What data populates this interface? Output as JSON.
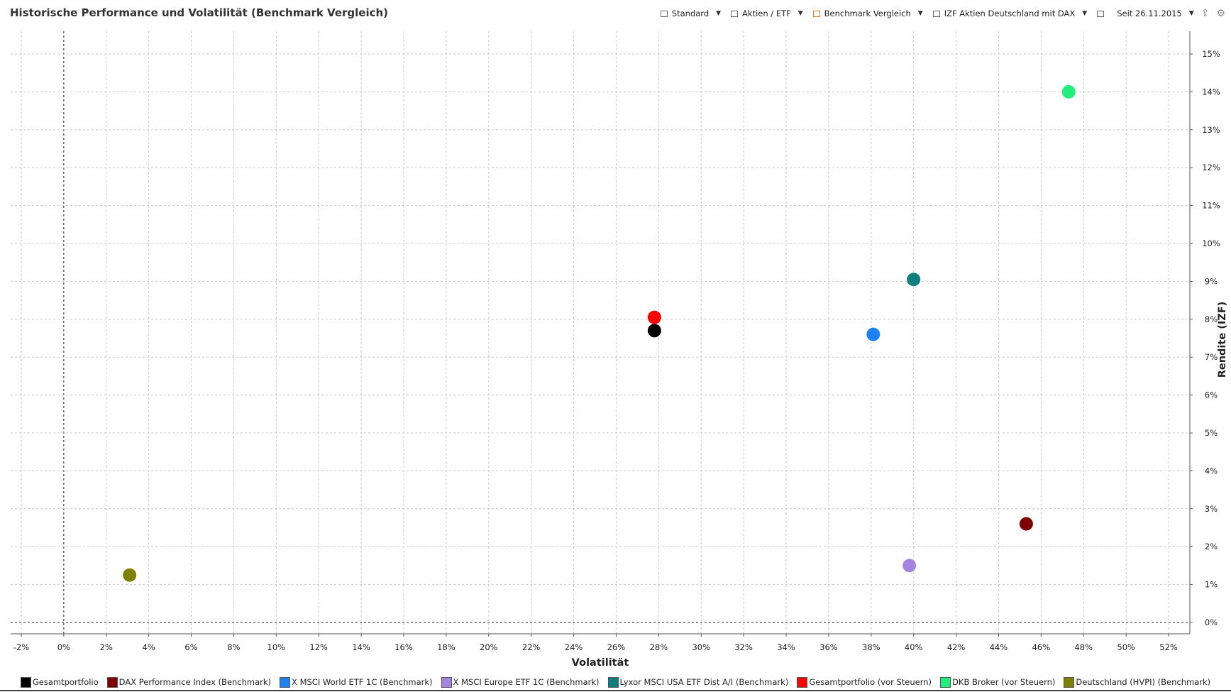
{
  "header": {
    "title": "Historische Performance und Volatilität (Benchmark Vergleich)",
    "toolbar": {
      "standard": "Standard",
      "aktien_etf": "Aktien / ETF",
      "benchmark": "Benchmark Vergleich",
      "izf": "IZF Aktien Deutschland mit DAX",
      "since": "Seit 26.11.2015",
      "upload_icon": "upload-icon",
      "gear_icon": "gear-icon"
    }
  },
  "chart_data": {
    "type": "scatter",
    "title": "Historische Performance und Volatilität (Benchmark Vergleich)",
    "xlabel": "Volatilität",
    "ylabel": "Rendite (IZF)",
    "xlim": [
      -2.5,
      53
    ],
    "ylim": [
      -0.3,
      15.6
    ],
    "x_ticks": [
      -2,
      0,
      2,
      4,
      6,
      8,
      10,
      12,
      14,
      16,
      18,
      20,
      22,
      24,
      26,
      28,
      30,
      32,
      34,
      36,
      38,
      40,
      42,
      44,
      46,
      48,
      50,
      52
    ],
    "y_ticks": [
      0,
      1,
      2,
      3,
      4,
      5,
      6,
      7,
      8,
      9,
      10,
      11,
      12,
      13,
      14,
      15
    ],
    "tick_format": "percent",
    "grid": true,
    "legend_position": "bottom",
    "series": [
      {
        "name": "Gesamtportfolio",
        "color": "#000000",
        "x": 27.8,
        "y": 7.7
      },
      {
        "name": "DAX Performance Index (Benchmark)",
        "color": "#800000",
        "x": 45.3,
        "y": 2.6
      },
      {
        "name": "X MSCI World ETF 1C (Benchmark)",
        "color": "#1a82f5",
        "x": 38.1,
        "y": 7.6
      },
      {
        "name": "X MSCI Europe ETF 1C (Benchmark)",
        "color": "#a583e0",
        "x": 39.8,
        "y": 1.5
      },
      {
        "name": "Lyxor MSCI USA ETF Dist A/I (Benchmark)",
        "color": "#0e7f7f",
        "x": 40.0,
        "y": 9.05
      },
      {
        "name": "Gesamtportfolio (vor Steuern)",
        "color": "#ff0000",
        "x": 27.8,
        "y": 8.05
      },
      {
        "name": "DKB Broker (vor Steuern)",
        "color": "#22ee7e",
        "x": 47.3,
        "y": 14.0
      },
      {
        "name": "Deutschland (HVPI) (Benchmark)",
        "color": "#808000",
        "x": 3.1,
        "y": 1.25
      }
    ]
  }
}
